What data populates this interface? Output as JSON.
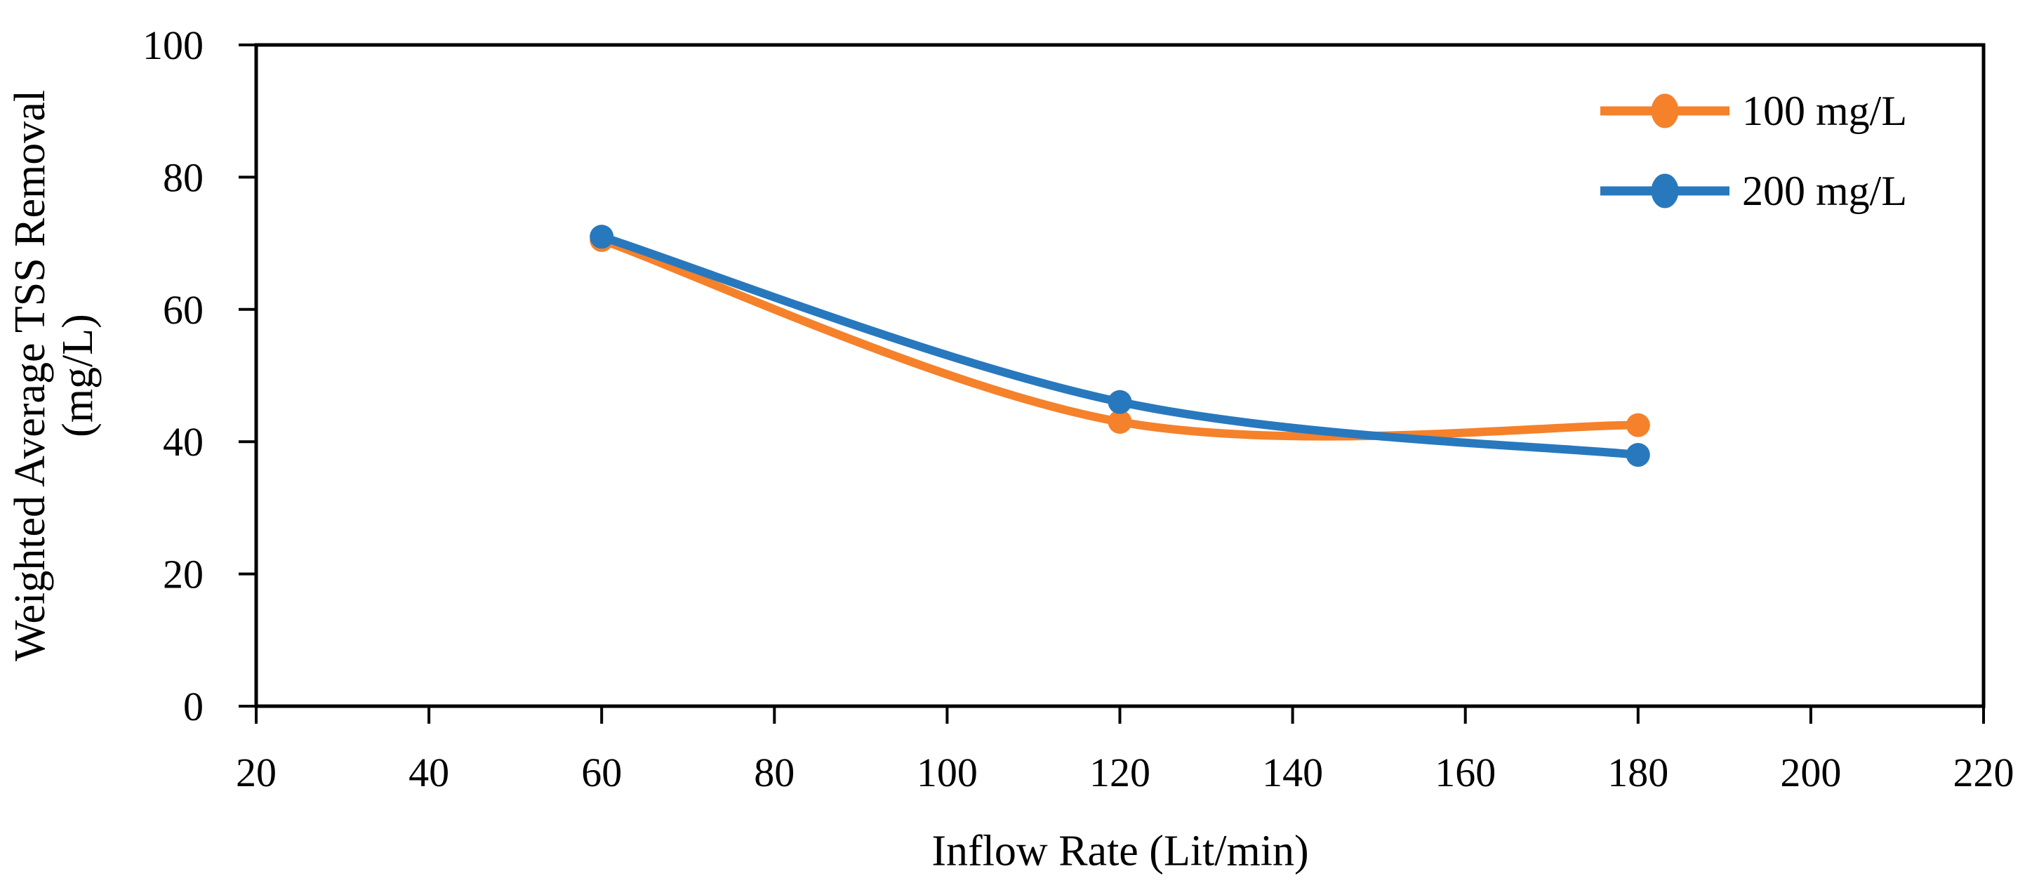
{
  "figure": {
    "background_color": "#FFFFFF",
    "axis_color": "#000000"
  },
  "chart_data": {
    "type": "line",
    "title": "",
    "x": [
      60,
      120,
      180
    ],
    "series": [
      {
        "name": "100 mg/L",
        "color": "#F5812B",
        "values": [
          70.5,
          43,
          42.5
        ]
      },
      {
        "name": "200 mg/L",
        "color": "#2878BE",
        "values": [
          71,
          46,
          38
        ]
      }
    ],
    "xlabel": "Inflow Rate (Lit/min)",
    "ylabel": "Weighted Average TSS Removal (mg/L)",
    "ylabel_lines": [
      "Weighted Average TSS Removal",
      "(mg/L)"
    ],
    "xlim": [
      20,
      220
    ],
    "ylim": [
      0,
      100
    ],
    "xticks": [
      20,
      40,
      60,
      80,
      100,
      120,
      140,
      160,
      180,
      200,
      220
    ],
    "yticks": [
      0,
      20,
      40,
      60,
      80,
      100
    ],
    "grid": false,
    "smoothed_lines": true,
    "marker": "circle",
    "legend_position": "top-right-inside",
    "axis_color": "#000000"
  }
}
